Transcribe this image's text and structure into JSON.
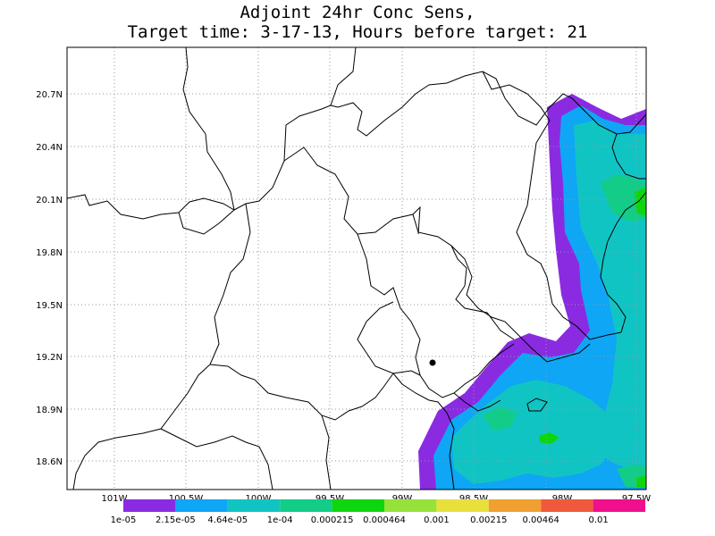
{
  "title": {
    "line1": "Adjoint 24hr Conc Sens,",
    "line2": "Target time: 3-17-13, Hours before target: 21"
  },
  "map": {
    "lat_labels": [
      "20.7N",
      "20.4N",
      "20.1N",
      "19.8N",
      "19.5N",
      "19.2N",
      "18.9N",
      "18.6N"
    ],
    "lon_labels": [
      "101W",
      "100.5W",
      "100W",
      "99.5W",
      "99W",
      "98.5W",
      "98W",
      "97.5W"
    ],
    "marker_name": "target-point"
  },
  "legend": {
    "colors": [
      "#8a2be2",
      "#0ea6f5",
      "#11c4c4",
      "#12cc88",
      "#0ed60e",
      "#96e23a",
      "#e8e03a",
      "#f0a030",
      "#f05a3c",
      "#f00f8c"
    ],
    "labels": [
      "1e-05",
      "2.15e-05",
      "4.64e-05",
      "1e-04",
      "0.000215",
      "0.000464",
      "0.001",
      "0.00215",
      "0.00464",
      "0.01"
    ]
  }
}
